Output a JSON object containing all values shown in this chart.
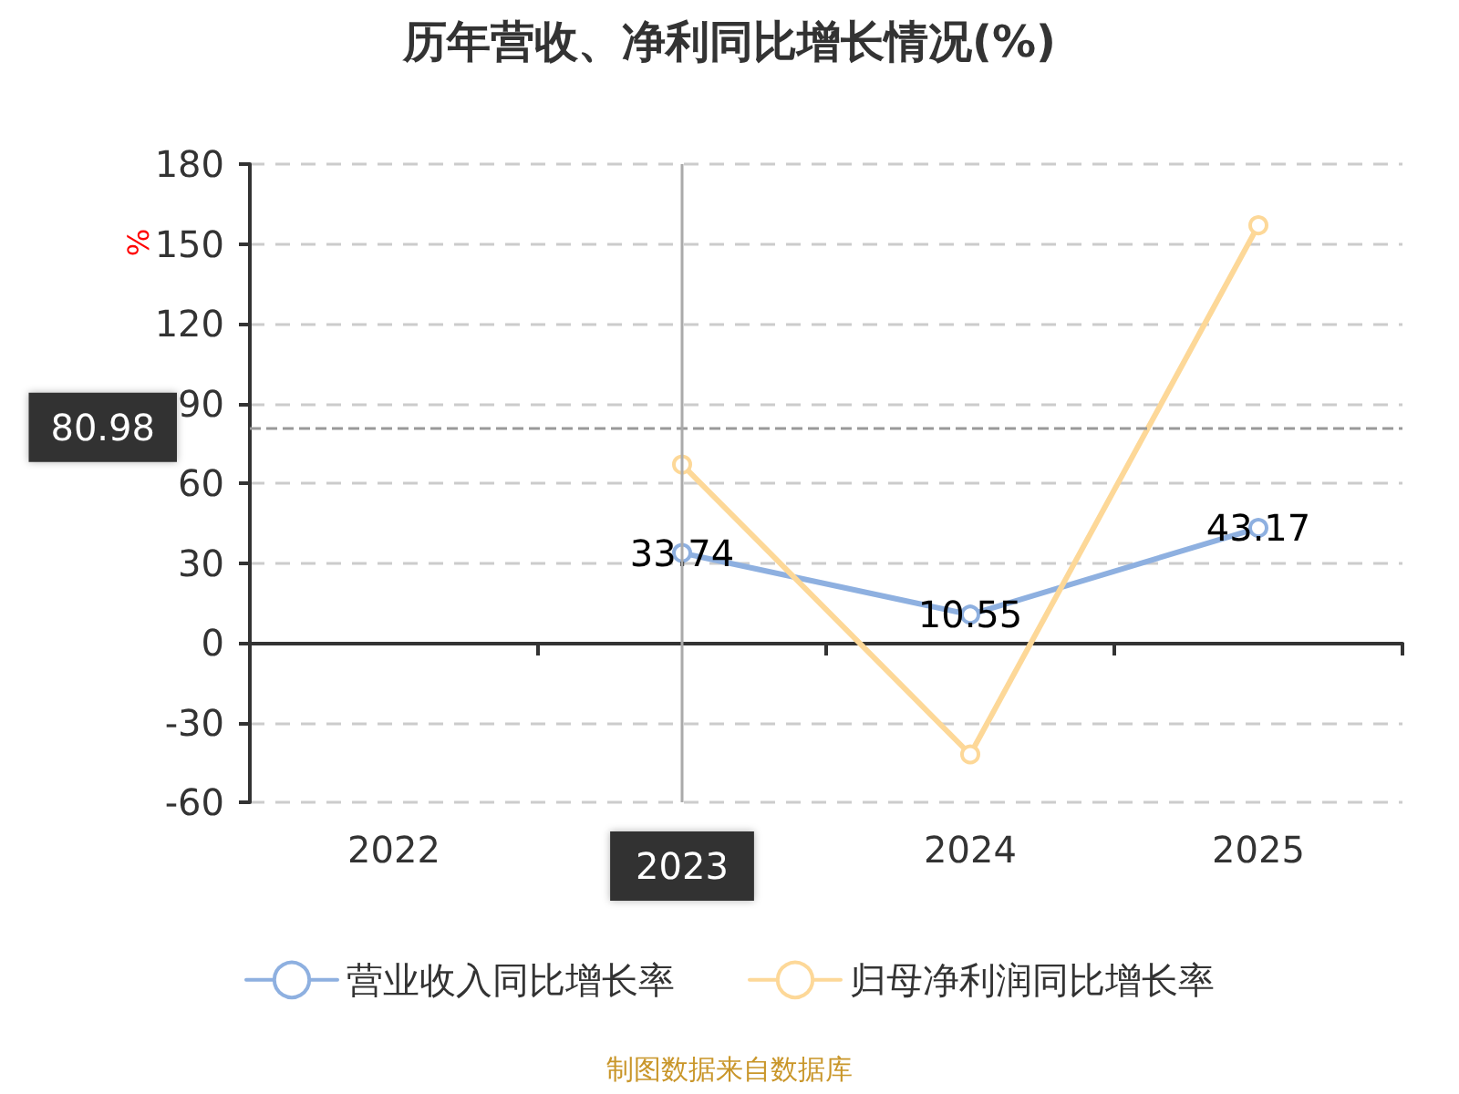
{
  "chart_data": {
    "type": "line",
    "title": "历年营收、净利同比增长情况(%)",
    "ylabel": "%",
    "categories": [
      "2022",
      "2023",
      "2024",
      "2025"
    ],
    "series": [
      {
        "name": "营业收入同比增长率",
        "color": "#8eb0e0",
        "values": [
          null,
          33.74,
          10.55,
          43.17
        ],
        "value_labels": [
          null,
          "33.74",
          "10.55",
          "43.17"
        ]
      },
      {
        "name": "归母净利润同比增长率",
        "color": "#fdd898",
        "values": [
          null,
          67,
          -42,
          157
        ]
      }
    ],
    "ylim": [
      -60,
      180
    ],
    "yticks": [
      -60,
      -30,
      0,
      30,
      60,
      90,
      120,
      150,
      180
    ],
    "grid": "y",
    "legend": "bottom",
    "marker": "circle",
    "line_style": "solid",
    "ref_lines": [
      {
        "axis": "y",
        "value": 80.98,
        "label": "80.98",
        "color": "#999999",
        "line_style": "dashed"
      },
      {
        "axis": "x",
        "value": "2023",
        "color": "#aaaaaa",
        "line_style": "solid"
      }
    ],
    "annotations": [
      "制图数据来自数据库"
    ]
  }
}
